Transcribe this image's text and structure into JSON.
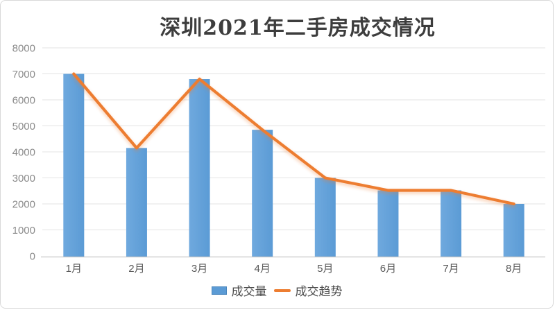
{
  "chart_data": {
    "type": "bar",
    "title": "深圳2021年二手房成交情况",
    "categories": [
      "1月",
      "2月",
      "3月",
      "4月",
      "5月",
      "6月",
      "7月",
      "8月"
    ],
    "series": [
      {
        "name": "成交量",
        "type": "bar",
        "color": "#5B9BD5",
        "values": [
          7000,
          4150,
          6800,
          4850,
          3000,
          2520,
          2520,
          2000
        ]
      },
      {
        "name": "成交趋势",
        "type": "line",
        "color": "#ED7D31",
        "values": [
          7000,
          4150,
          6800,
          4850,
          3000,
          2520,
          2520,
          2000
        ]
      }
    ],
    "xlabel": "",
    "ylabel": "",
    "ylim": [
      0,
      8000
    ],
    "ytick_step": 1000,
    "yticks": [
      0,
      1000,
      2000,
      3000,
      4000,
      5000,
      6000,
      7000,
      8000
    ],
    "grid": true,
    "legend_position": "bottom",
    "colors": {
      "bar_fill": "#5B9BD5",
      "bar_fill_light": "#6FA9DE",
      "bar_border": "#4a86bd",
      "line_stroke": "#ED7D31",
      "gridline": "#e3e3e3",
      "axis_line": "#c6c6c6",
      "ytick_label": "#8a8a8a",
      "xtick_label": "#595959",
      "title_color": "#3d3d3d"
    }
  }
}
